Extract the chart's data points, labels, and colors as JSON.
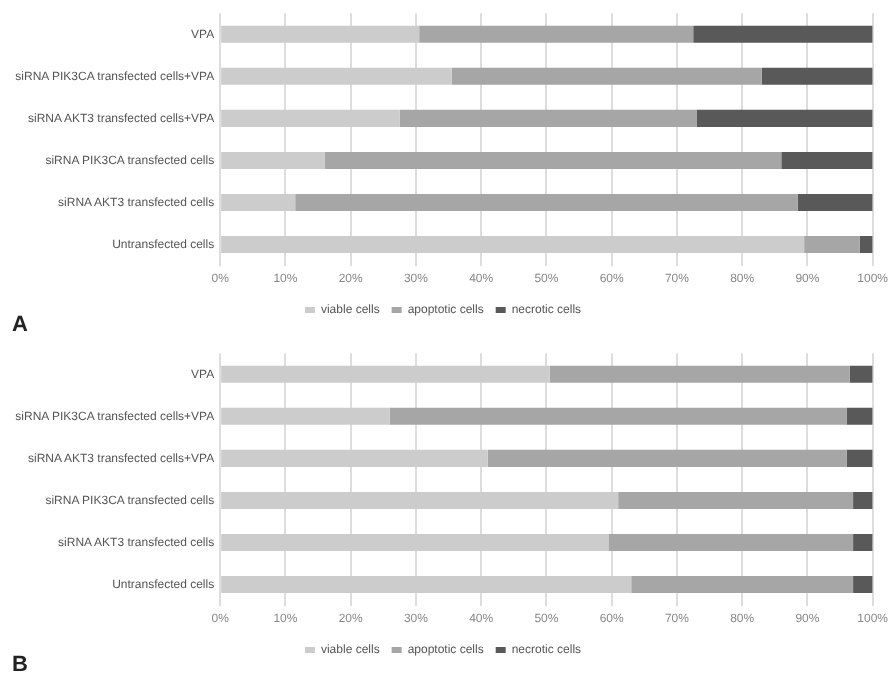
{
  "chart_data": [
    {
      "type": "bar",
      "orientation": "horizontal",
      "stacked": true,
      "categories": [
        "VPA",
        "siRNA PIK3CA transfected cells+VPA",
        "siRNA AKT3 transfected cells+VPA",
        "siRNA PIK3CA transfected cells",
        "siRNA AKT3 transfected cells",
        "Untransfected cells"
      ],
      "series": [
        {
          "name": "viable cells",
          "color": "#cccccc",
          "values": [
            30.5,
            35.5,
            27.5,
            16,
            11.5,
            89.5
          ]
        },
        {
          "name": "apoptotic cells",
          "color": "#a6a6a6",
          "values": [
            42,
            47.5,
            45.5,
            70,
            77,
            8.5
          ]
        },
        {
          "name": "necrotic cells",
          "color": "#595959",
          "values": [
            27.5,
            17,
            27,
            14,
            11.5,
            2
          ]
        }
      ],
      "xlim": [
        0,
        100
      ],
      "xticks": [
        {
          "value": 0,
          "label": "0%"
        },
        {
          "value": 10,
          "label": "10%"
        },
        {
          "value": 20,
          "label": "20%"
        },
        {
          "value": 30,
          "label": "30%"
        },
        {
          "value": 40,
          "label": "40%"
        },
        {
          "value": 50,
          "label": "50%"
        },
        {
          "value": 60,
          "label": "60%"
        },
        {
          "value": 70,
          "label": "70%"
        },
        {
          "value": 80,
          "label": "80%"
        },
        {
          "value": 90,
          "label": "90%"
        },
        {
          "value": 100,
          "label": "100%"
        }
      ],
      "grid": "x",
      "legend": "bottom",
      "annotations": [
        "A"
      ]
    },
    {
      "type": "bar",
      "orientation": "horizontal",
      "stacked": true,
      "categories": [
        "VPA",
        "siRNA PIK3CA transfected cells+VPA",
        "siRNA AKT3 transfected cells+VPA",
        "siRNA PIK3CA transfected cells",
        "siRNA AKT3 transfected cells",
        "Untransfected cells"
      ],
      "series": [
        {
          "name": "viable cells",
          "color": "#cccccc",
          "values": [
            50.5,
            26,
            41,
            61,
            59.5,
            63
          ]
        },
        {
          "name": "apoptotic cells",
          "color": "#a6a6a6",
          "values": [
            46,
            70,
            55,
            36,
            37.5,
            34
          ]
        },
        {
          "name": "necrotic cells",
          "color": "#595959",
          "values": [
            3.5,
            4,
            4,
            3,
            3,
            3
          ]
        }
      ],
      "xlim": [
        0,
        100
      ],
      "xticks": [
        {
          "value": 0,
          "label": "0%"
        },
        {
          "value": 10,
          "label": "10%"
        },
        {
          "value": 20,
          "label": "20%"
        },
        {
          "value": 30,
          "label": "30%"
        },
        {
          "value": 40,
          "label": "40%"
        },
        {
          "value": 50,
          "label": "50%"
        },
        {
          "value": 60,
          "label": "60%"
        },
        {
          "value": 70,
          "label": "70%"
        },
        {
          "value": 80,
          "label": "80%"
        },
        {
          "value": 90,
          "label": "90%"
        },
        {
          "value": 100,
          "label": "100%"
        }
      ],
      "grid": "x",
      "legend": "bottom",
      "annotations": [
        "B"
      ]
    }
  ]
}
